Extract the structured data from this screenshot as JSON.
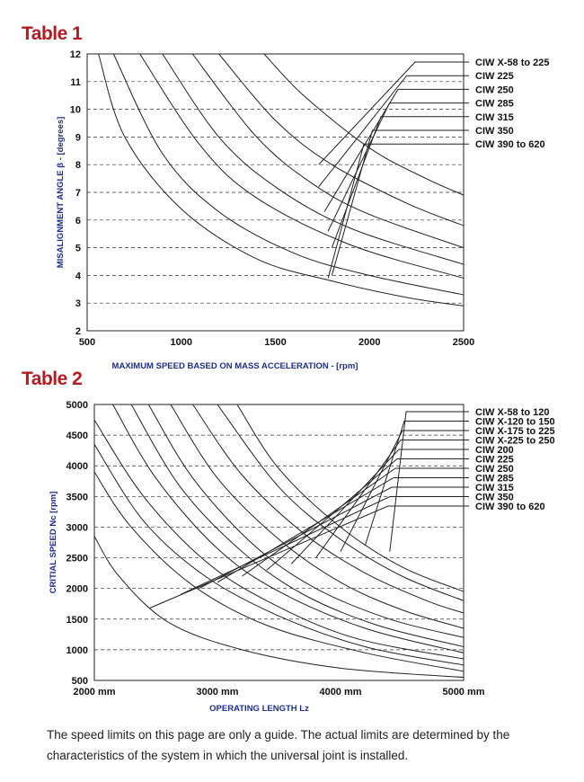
{
  "table1_title": "Table 1",
  "table2_title": "Table 2",
  "note": "The speed limits on this page are only a guide. The actual limits are determined by the characteristics of the system in which the universal joint is installed.",
  "chart_data": [
    {
      "type": "line",
      "xlabel": "MAXIMUM SPEED BASED ON MASS ACCELERATION - [rpm]",
      "ylabel": "MISALIGNMENT ANGLE β - [degrees]",
      "xlim": [
        500,
        2500
      ],
      "ylim": [
        2,
        12
      ],
      "xticks": [
        "500",
        "1000",
        "1500",
        "2000",
        "2500"
      ],
      "yticks": [
        "2",
        "3",
        "4",
        "5",
        "6",
        "7",
        "8",
        "9",
        "10",
        "11",
        "12"
      ],
      "grid": "horizontal dashed",
      "series": [
        {
          "name": "CIW X-58 to 225",
          "x": [
            1440,
            1650,
            2000,
            2300,
            2500
          ],
          "y": [
            12,
            10.5,
            8.6,
            7.5,
            6.9
          ],
          "label_point": [
            1730,
            8.0
          ]
        },
        {
          "name": "CIW 225",
          "x": [
            1200,
            1500,
            1800,
            2200,
            2500
          ],
          "y": [
            12,
            9.6,
            8.0,
            6.6,
            5.8
          ],
          "label_point": [
            1730,
            7.2
          ]
        },
        {
          "name": "CIW 250",
          "x": [
            1060,
            1400,
            1700,
            2000,
            2500
          ],
          "y": [
            12,
            9.0,
            7.3,
            6.2,
            5.0
          ],
          "label_point": [
            1760,
            6.3
          ]
        },
        {
          "name": "CIW 285",
          "x": [
            900,
            1200,
            1500,
            1900,
            2500
          ],
          "y": [
            12,
            9.0,
            7.2,
            5.7,
            4.4
          ],
          "label_point": [
            1780,
            5.6
          ]
        },
        {
          "name": "CIW 315",
          "x": [
            780,
            1100,
            1400,
            1900,
            2500
          ],
          "y": [
            12,
            8.7,
            6.8,
            5.1,
            3.9
          ],
          "label_point": [
            1800,
            5.0
          ]
        },
        {
          "name": "CIW 350",
          "x": [
            640,
            900,
            1200,
            1600,
            2000,
            2500
          ],
          "y": [
            12,
            8.4,
            6.3,
            4.8,
            4.0,
            3.3
          ],
          "label_point": [
            1800,
            4.0
          ]
        },
        {
          "name": "CIW 390 to 620",
          "x": [
            560,
            700,
            1000,
            1400,
            1800,
            2200,
            2500
          ],
          "y": [
            12,
            9.0,
            6.4,
            4.6,
            3.8,
            3.2,
            2.9
          ],
          "label_point": [
            1780,
            3.9
          ]
        }
      ]
    },
    {
      "type": "line",
      "xlabel": "OPERATING LENGTH Lz",
      "ylabel": "CRITIAL SPEED Nc [rpm]",
      "xlim": [
        2000,
        5000
      ],
      "ylim": [
        500,
        5000
      ],
      "xticks": [
        "2000 mm",
        "3000 mm",
        "4000 mm",
        "5000 mm"
      ],
      "yticks": [
        "500",
        "1000",
        "1500",
        "2000",
        "2500",
        "3000",
        "3500",
        "4000",
        "4500",
        "5000"
      ],
      "grid": "horizontal dashed",
      "series": [
        {
          "name": "CIW X-58 to 120",
          "x": [
            3160,
            3500,
            4000,
            4500,
            5000
          ],
          "y": [
            5000,
            3950,
            3000,
            2350,
            1950
          ],
          "label_point": [
            4400,
            2600
          ]
        },
        {
          "name": "CIW X-120 to 150",
          "x": [
            3000,
            3500,
            4000,
            4500,
            5000
          ],
          "y": [
            5000,
            3650,
            2800,
            2200,
            1800
          ],
          "label_point": [
            4200,
            2700
          ]
        },
        {
          "name": "CIW X-175 to 225",
          "x": [
            2800,
            3200,
            3700,
            4200,
            4700,
            5000
          ],
          "y": [
            5000,
            3850,
            2900,
            2250,
            1800,
            1600
          ],
          "label_point": [
            4000,
            2600
          ]
        },
        {
          "name": "CIW X-225 to 250",
          "x": [
            2620,
            3000,
            3500,
            4000,
            4500,
            5000
          ],
          "y": [
            5000,
            3800,
            2800,
            2100,
            1650,
            1350
          ],
          "label_point": [
            3800,
            2500
          ]
        },
        {
          "name": "CIW 200",
          "x": [
            2440,
            2800,
            3300,
            3800,
            4400,
            5000
          ],
          "y": [
            5000,
            3800,
            2700,
            2000,
            1500,
            1200
          ],
          "label_point": [
            3600,
            2400
          ]
        },
        {
          "name": "CIW 225",
          "x": [
            2300,
            2700,
            3200,
            3700,
            4300,
            5000
          ],
          "y": [
            5000,
            3650,
            2600,
            1900,
            1400,
            1050
          ],
          "label_point": [
            3400,
            2300
          ]
        },
        {
          "name": "CIW 250",
          "x": [
            2150,
            2500,
            3000,
            3500,
            4200,
            5000
          ],
          "y": [
            5000,
            3800,
            2650,
            1950,
            1350,
            950
          ],
          "label_point": [
            3200,
            2200
          ]
        },
        {
          "name": "CIW 285",
          "x": [
            2000,
            2400,
            2900,
            3400,
            4100,
            5000
          ],
          "y": [
            4750,
            3500,
            2450,
            1800,
            1200,
            850
          ],
          "label_point": [
            3000,
            2100
          ]
        },
        {
          "name": "CIW 315",
          "x": [
            2000,
            2400,
            2900,
            3500,
            4200,
            5000
          ],
          "y": [
            4350,
            3100,
            2200,
            1550,
            1050,
            750
          ],
          "label_point": [
            2850,
            2000
          ]
        },
        {
          "name": "CIW 350",
          "x": [
            2000,
            2300,
            2800,
            3400,
            4200,
            5000
          ],
          "y": [
            3900,
            3000,
            2050,
            1400,
            950,
            650
          ],
          "label_point": [
            2700,
            1900
          ]
        },
        {
          "name": "CIW 390 to 620",
          "x": [
            2000,
            2200,
            2600,
            3200,
            4000,
            5000
          ],
          "y": [
            2850,
            2200,
            1450,
            1000,
            700,
            550
          ],
          "label_point": [
            2450,
            1680
          ]
        }
      ]
    }
  ]
}
